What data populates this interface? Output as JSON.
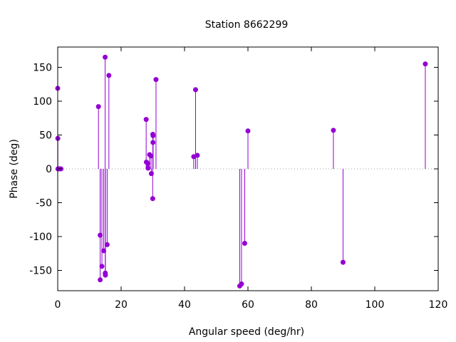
{
  "chart_data": {
    "type": "stem",
    "title": "Station 8662299",
    "xlabel": "Angular speed (deg/hr)",
    "ylabel": "Phase (deg)",
    "xlim": [
      0,
      120
    ],
    "ylim": [
      -180,
      180
    ],
    "xticks": [
      0,
      20,
      40,
      60,
      80,
      100,
      120
    ],
    "yticks": [
      -150,
      -100,
      -50,
      0,
      50,
      100,
      150
    ],
    "grid": false,
    "zero_line": "dotted",
    "series_color": "#9400d3",
    "points": [
      {
        "x": 0.0,
        "y": 119
      },
      {
        "x": 0.04,
        "y": 45
      },
      {
        "x": 0.08,
        "y": 0
      },
      {
        "x": 0.5,
        "y": 0
      },
      {
        "x": 1.0,
        "y": 0
      },
      {
        "x": 12.85,
        "y": 92
      },
      {
        "x": 13.4,
        "y": -98
      },
      {
        "x": 13.4,
        "y": -164
      },
      {
        "x": 13.94,
        "y": -144
      },
      {
        "x": 14.5,
        "y": -121
      },
      {
        "x": 14.96,
        "y": 165
      },
      {
        "x": 15.0,
        "y": -154
      },
      {
        "x": 15.04,
        "y": -157
      },
      {
        "x": 15.6,
        "y": -112
      },
      {
        "x": 16.14,
        "y": 138
      },
      {
        "x": 27.9,
        "y": 73
      },
      {
        "x": 27.97,
        "y": 10
      },
      {
        "x": 28.44,
        "y": 8
      },
      {
        "x": 28.5,
        "y": 1
      },
      {
        "x": 28.98,
        "y": 21
      },
      {
        "x": 29.46,
        "y": 19
      },
      {
        "x": 29.53,
        "y": -7
      },
      {
        "x": 29.96,
        "y": -44
      },
      {
        "x": 30.0,
        "y": 51
      },
      {
        "x": 30.04,
        "y": 39
      },
      {
        "x": 30.08,
        "y": 49
      },
      {
        "x": 31.0,
        "y": 132
      },
      {
        "x": 42.9,
        "y": 18
      },
      {
        "x": 43.48,
        "y": 117
      },
      {
        "x": 44.03,
        "y": 20
      },
      {
        "x": 57.4,
        "y": -173
      },
      {
        "x": 57.97,
        "y": -170
      },
      {
        "x": 58.98,
        "y": -110
      },
      {
        "x": 60.0,
        "y": 56
      },
      {
        "x": 86.95,
        "y": 57
      },
      {
        "x": 89.99,
        "y": -138
      },
      {
        "x": 115.94,
        "y": 155
      }
    ]
  }
}
